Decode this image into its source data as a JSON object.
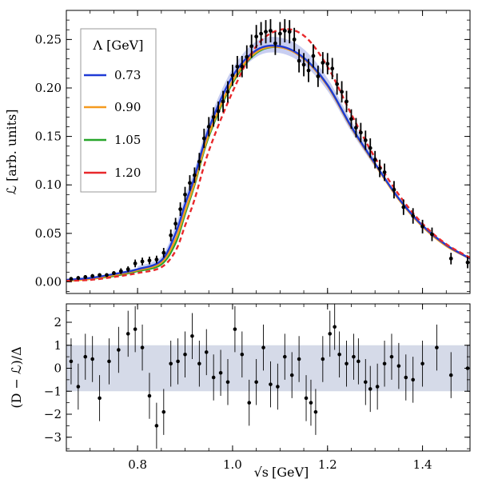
{
  "chart_data": {
    "type": "scatter",
    "colors": {
      "blue": "#1f3bd6",
      "orange": "#f59a1f",
      "green": "#27a52a",
      "red": "#e8282b",
      "band": "#c7cde0",
      "upper_band": "#9aa6e6"
    },
    "xaxis": {
      "label_main": "√s",
      "label_unit": "[GeV]",
      "range": [
        0.65,
        1.5
      ],
      "ticks": [
        0.8,
        1.0,
        1.2,
        1.4
      ],
      "tick_labels": [
        "0.8",
        "1.0",
        "1.2",
        "1.4"
      ]
    },
    "upper": {
      "ylabel": "ℒ [arb. units]",
      "ylim": [
        -0.012,
        0.28
      ],
      "yticks": [
        0.0,
        0.05,
        0.1,
        0.15,
        0.2,
        0.25
      ],
      "ytick_labels": [
        "0.00",
        "0.05",
        "0.10",
        "0.15",
        "0.20",
        "0.25"
      ],
      "legend": {
        "title": "Λ [GeV]",
        "placement": "top-left",
        "entries": [
          {
            "label": "0.73",
            "color": "#1f3bd6"
          },
          {
            "label": "0.90",
            "color": "#f59a1f"
          },
          {
            "label": "1.05",
            "color": "#27a52a"
          },
          {
            "label": "1.20",
            "color": "#e8282b"
          }
        ]
      },
      "curves": [
        {
          "label": "1.05",
          "color": "#27a52a",
          "x": [
            0.65,
            0.7,
            0.75,
            0.8,
            0.85,
            0.88,
            0.9,
            0.92,
            0.95,
            1.0,
            1.05,
            1.1,
            1.15,
            1.2,
            1.25,
            1.3,
            1.35,
            1.4,
            1.45,
            1.5
          ],
          "y": [
            0.001,
            0.003,
            0.006,
            0.011,
            0.018,
            0.04,
            0.07,
            0.1,
            0.15,
            0.205,
            0.236,
            0.242,
            0.231,
            0.203,
            0.16,
            0.122,
            0.086,
            0.058,
            0.038,
            0.024
          ]
        },
        {
          "label": "0.90",
          "color": "#f59a1f",
          "x": [
            0.65,
            0.7,
            0.75,
            0.8,
            0.85,
            0.88,
            0.9,
            0.92,
            0.95,
            1.0,
            1.05,
            1.1,
            1.15,
            1.2,
            1.25,
            1.3,
            1.35,
            1.4,
            1.45,
            1.5
          ],
          "y": [
            0.001,
            0.003,
            0.007,
            0.012,
            0.02,
            0.044,
            0.073,
            0.102,
            0.152,
            0.207,
            0.237,
            0.242,
            0.23,
            0.202,
            0.159,
            0.121,
            0.085,
            0.057,
            0.037,
            0.024
          ]
        },
        {
          "label": "0.73",
          "color": "#1f3bd6",
          "x": [
            0.65,
            0.7,
            0.75,
            0.8,
            0.85,
            0.88,
            0.9,
            0.92,
            0.95,
            1.0,
            1.05,
            1.1,
            1.15,
            1.2,
            1.25,
            1.3,
            1.35,
            1.4,
            1.45,
            1.5
          ],
          "y": [
            0.002,
            0.004,
            0.008,
            0.013,
            0.022,
            0.05,
            0.08,
            0.108,
            0.158,
            0.212,
            0.239,
            0.243,
            0.231,
            0.203,
            0.16,
            0.122,
            0.086,
            0.058,
            0.038,
            0.024
          ]
        },
        {
          "label": "1.20",
          "color": "#e8282b",
          "dashed": true,
          "x": [
            0.65,
            0.7,
            0.75,
            0.8,
            0.85,
            0.88,
            0.9,
            0.92,
            0.95,
            1.0,
            1.05,
            1.1,
            1.15,
            1.2,
            1.25,
            1.3,
            1.35,
            1.4,
            1.45,
            1.5
          ],
          "y": [
            0.001,
            0.002,
            0.005,
            0.009,
            0.015,
            0.032,
            0.058,
            0.085,
            0.135,
            0.196,
            0.243,
            0.26,
            0.254,
            0.222,
            0.173,
            0.128,
            0.09,
            0.06,
            0.039,
            0.025
          ]
        }
      ],
      "band": {
        "x": [
          0.8,
          0.85,
          0.88,
          0.9,
          0.92,
          0.95,
          1.0,
          1.05,
          1.1,
          1.15,
          1.2,
          1.25,
          1.3
        ],
        "low": [
          0.01,
          0.018,
          0.042,
          0.072,
          0.1,
          0.15,
          0.205,
          0.232,
          0.236,
          0.224,
          0.197,
          0.155,
          0.118
        ],
        "high": [
          0.016,
          0.026,
          0.058,
          0.088,
          0.116,
          0.166,
          0.22,
          0.248,
          0.252,
          0.24,
          0.21,
          0.166,
          0.127
        ]
      },
      "points": [
        {
          "x": 0.66,
          "y": 0.003,
          "e": 0.002
        },
        {
          "x": 0.675,
          "y": 0.004,
          "e": 0.002
        },
        {
          "x": 0.69,
          "y": 0.005,
          "e": 0.002
        },
        {
          "x": 0.705,
          "y": 0.006,
          "e": 0.002
        },
        {
          "x": 0.72,
          "y": 0.007,
          "e": 0.002
        },
        {
          "x": 0.735,
          "y": 0.007,
          "e": 0.002
        },
        {
          "x": 0.75,
          "y": 0.009,
          "e": 0.002
        },
        {
          "x": 0.765,
          "y": 0.011,
          "e": 0.003
        },
        {
          "x": 0.78,
          "y": 0.013,
          "e": 0.003
        },
        {
          "x": 0.795,
          "y": 0.019,
          "e": 0.004
        },
        {
          "x": 0.81,
          "y": 0.021,
          "e": 0.004
        },
        {
          "x": 0.825,
          "y": 0.022,
          "e": 0.004
        },
        {
          "x": 0.84,
          "y": 0.023,
          "e": 0.004
        },
        {
          "x": 0.855,
          "y": 0.03,
          "e": 0.005
        },
        {
          "x": 0.87,
          "y": 0.048,
          "e": 0.006
        },
        {
          "x": 0.88,
          "y": 0.06,
          "e": 0.006
        },
        {
          "x": 0.89,
          "y": 0.075,
          "e": 0.007
        },
        {
          "x": 0.9,
          "y": 0.09,
          "e": 0.008
        },
        {
          "x": 0.91,
          "y": 0.102,
          "e": 0.008
        },
        {
          "x": 0.92,
          "y": 0.11,
          "e": 0.008
        },
        {
          "x": 0.93,
          "y": 0.124,
          "e": 0.009
        },
        {
          "x": 0.94,
          "y": 0.148,
          "e": 0.01
        },
        {
          "x": 0.95,
          "y": 0.16,
          "e": 0.01
        },
        {
          "x": 0.96,
          "y": 0.17,
          "e": 0.01
        },
        {
          "x": 0.97,
          "y": 0.176,
          "e": 0.01
        },
        {
          "x": 0.98,
          "y": 0.186,
          "e": 0.011
        },
        {
          "x": 0.99,
          "y": 0.196,
          "e": 0.011
        },
        {
          "x": 1.0,
          "y": 0.213,
          "e": 0.011
        },
        {
          "x": 1.01,
          "y": 0.222,
          "e": 0.011
        },
        {
          "x": 1.02,
          "y": 0.222,
          "e": 0.011
        },
        {
          "x": 1.03,
          "y": 0.232,
          "e": 0.012
        },
        {
          "x": 1.04,
          "y": 0.243,
          "e": 0.012
        },
        {
          "x": 1.05,
          "y": 0.253,
          "e": 0.012
        },
        {
          "x": 1.06,
          "y": 0.256,
          "e": 0.012
        },
        {
          "x": 1.07,
          "y": 0.258,
          "e": 0.012
        },
        {
          "x": 1.08,
          "y": 0.259,
          "e": 0.012
        },
        {
          "x": 1.09,
          "y": 0.246,
          "e": 0.012
        },
        {
          "x": 1.1,
          "y": 0.256,
          "e": 0.012
        },
        {
          "x": 1.11,
          "y": 0.259,
          "e": 0.012
        },
        {
          "x": 1.12,
          "y": 0.258,
          "e": 0.012
        },
        {
          "x": 1.13,
          "y": 0.25,
          "e": 0.012
        },
        {
          "x": 1.14,
          "y": 0.228,
          "e": 0.012
        },
        {
          "x": 1.15,
          "y": 0.224,
          "e": 0.012
        },
        {
          "x": 1.16,
          "y": 0.218,
          "e": 0.012
        },
        {
          "x": 1.17,
          "y": 0.233,
          "e": 0.012
        },
        {
          "x": 1.18,
          "y": 0.212,
          "e": 0.011
        },
        {
          "x": 1.19,
          "y": 0.226,
          "e": 0.011
        },
        {
          "x": 1.2,
          "y": 0.225,
          "e": 0.011
        },
        {
          "x": 1.21,
          "y": 0.22,
          "e": 0.011
        },
        {
          "x": 1.22,
          "y": 0.204,
          "e": 0.011
        },
        {
          "x": 1.23,
          "y": 0.196,
          "e": 0.011
        },
        {
          "x": 1.24,
          "y": 0.186,
          "e": 0.011
        },
        {
          "x": 1.25,
          "y": 0.168,
          "e": 0.01
        },
        {
          "x": 1.26,
          "y": 0.159,
          "e": 0.01
        },
        {
          "x": 1.27,
          "y": 0.154,
          "e": 0.01
        },
        {
          "x": 1.28,
          "y": 0.146,
          "e": 0.01
        },
        {
          "x": 1.29,
          "y": 0.138,
          "e": 0.01
        },
        {
          "x": 1.3,
          "y": 0.126,
          "e": 0.009
        },
        {
          "x": 1.31,
          "y": 0.117,
          "e": 0.009
        },
        {
          "x": 1.32,
          "y": 0.113,
          "e": 0.009
        },
        {
          "x": 1.34,
          "y": 0.095,
          "e": 0.009
        },
        {
          "x": 1.36,
          "y": 0.077,
          "e": 0.008
        },
        {
          "x": 1.38,
          "y": 0.068,
          "e": 0.008
        },
        {
          "x": 1.4,
          "y": 0.057,
          "e": 0.007
        },
        {
          "x": 1.42,
          "y": 0.049,
          "e": 0.007
        },
        {
          "x": 1.46,
          "y": 0.024,
          "e": 0.006
        },
        {
          "x": 1.495,
          "y": 0.02,
          "e": 0.006
        }
      ]
    },
    "lower": {
      "ylabel": "(D − ℒ)/Δ",
      "ylim": [
        -3.6,
        2.8
      ],
      "yticks": [
        -3,
        -2,
        -1,
        0,
        1,
        2
      ],
      "ytick_labels": [
        "−3",
        "−2",
        "−1",
        "0",
        "1",
        "2"
      ],
      "band": [
        -1,
        1
      ],
      "points": [
        {
          "x": 0.66,
          "y": 0.3
        },
        {
          "x": 0.675,
          "y": -0.8
        },
        {
          "x": 0.69,
          "y": 0.5
        },
        {
          "x": 0.705,
          "y": 0.4
        },
        {
          "x": 0.72,
          "y": -1.3
        },
        {
          "x": 0.74,
          "y": 0.3
        },
        {
          "x": 0.76,
          "y": 0.8
        },
        {
          "x": 0.78,
          "y": 1.5
        },
        {
          "x": 0.795,
          "y": 1.7
        },
        {
          "x": 0.81,
          "y": 0.9
        },
        {
          "x": 0.825,
          "y": -1.2
        },
        {
          "x": 0.84,
          "y": -2.5
        },
        {
          "x": 0.855,
          "y": -1.9
        },
        {
          "x": 0.87,
          "y": 0.2
        },
        {
          "x": 0.885,
          "y": 0.3
        },
        {
          "x": 0.9,
          "y": 0.6
        },
        {
          "x": 0.915,
          "y": 1.4
        },
        {
          "x": 0.93,
          "y": 0.2
        },
        {
          "x": 0.945,
          "y": 0.7
        },
        {
          "x": 0.96,
          "y": -0.4
        },
        {
          "x": 0.975,
          "y": -0.2
        },
        {
          "x": 0.99,
          "y": -0.6
        },
        {
          "x": 1.005,
          "y": 1.7
        },
        {
          "x": 1.02,
          "y": 0.6
        },
        {
          "x": 1.035,
          "y": -1.5
        },
        {
          "x": 1.05,
          "y": -0.6
        },
        {
          "x": 1.065,
          "y": 0.9
        },
        {
          "x": 1.08,
          "y": -0.7
        },
        {
          "x": 1.095,
          "y": -0.8
        },
        {
          "x": 1.11,
          "y": 0.5
        },
        {
          "x": 1.125,
          "y": -0.3
        },
        {
          "x": 1.14,
          "y": 0.4
        },
        {
          "x": 1.155,
          "y": -1.3
        },
        {
          "x": 1.165,
          "y": -1.5
        },
        {
          "x": 1.175,
          "y": -1.9
        },
        {
          "x": 1.19,
          "y": 0.4
        },
        {
          "x": 1.205,
          "y": 1.5
        },
        {
          "x": 1.215,
          "y": 1.8
        },
        {
          "x": 1.225,
          "y": 0.6
        },
        {
          "x": 1.24,
          "y": 0.2
        },
        {
          "x": 1.255,
          "y": 0.5
        },
        {
          "x": 1.265,
          "y": 0.3
        },
        {
          "x": 1.28,
          "y": -0.6
        },
        {
          "x": 1.29,
          "y": -0.9
        },
        {
          "x": 1.305,
          "y": -0.8
        },
        {
          "x": 1.32,
          "y": 0.2
        },
        {
          "x": 1.335,
          "y": 0.5
        },
        {
          "x": 1.35,
          "y": 0.1
        },
        {
          "x": 1.365,
          "y": -0.4
        },
        {
          "x": 1.38,
          "y": -0.5
        },
        {
          "x": 1.4,
          "y": 0.2
        },
        {
          "x": 1.43,
          "y": 0.9
        },
        {
          "x": 1.46,
          "y": -0.3
        },
        {
          "x": 1.495,
          "y": 0.0
        }
      ]
    }
  }
}
